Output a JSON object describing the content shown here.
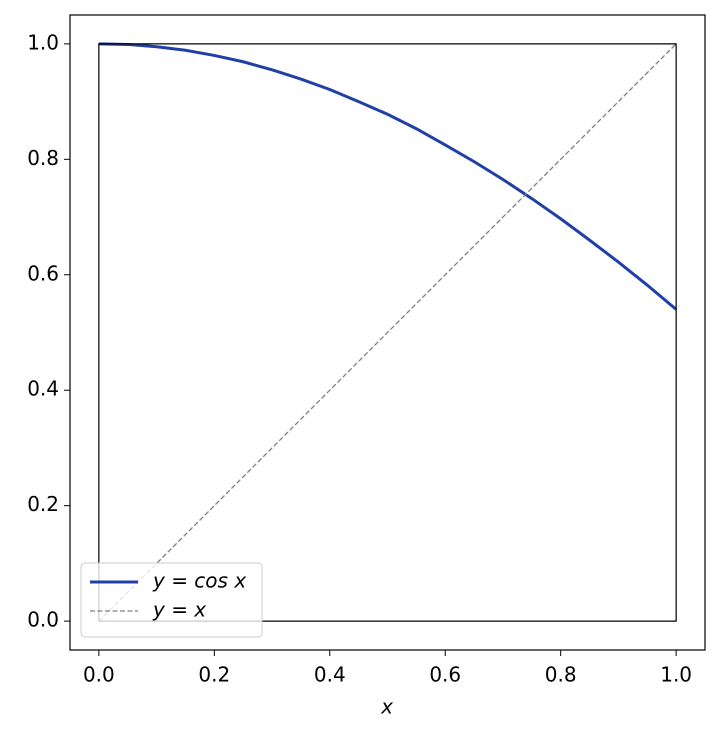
{
  "chart_data": {
    "type": "line",
    "xlabel": "x",
    "xlim": [
      -0.05,
      1.05
    ],
    "ylim": [
      -0.05,
      1.05
    ],
    "xticks": [
      {
        "value": 0,
        "label": "0.0"
      },
      0.2,
      0.4,
      0.6,
      0.8,
      {
        "value": 1,
        "label": "1.0"
      }
    ],
    "yticks": [
      {
        "value": 0,
        "label": "0.0"
      },
      0.2,
      0.4,
      0.6,
      0.8,
      {
        "value": 1,
        "label": "1.0"
      }
    ],
    "legend": "lower left",
    "series": [
      {
        "name": "y = cos x",
        "color": "#2040a8",
        "style": "solid",
        "x": [
          0,
          0.05,
          0.1,
          0.15,
          0.2,
          0.25,
          0.3,
          0.35,
          0.4,
          0.45,
          0.5,
          0.55,
          0.6,
          0.65,
          0.7,
          0.75,
          0.8,
          0.85,
          0.9,
          0.95,
          1
        ],
        "values": [
          1,
          0.999,
          0.995,
          0.989,
          0.98,
          0.969,
          0.955,
          0.939,
          0.921,
          0.9,
          0.878,
          0.853,
          0.825,
          0.796,
          0.765,
          0.732,
          0.697,
          0.66,
          0.622,
          0.582,
          0.54
        ]
      },
      {
        "name": "y = x",
        "color": "#808080",
        "style": "dashed",
        "x": [
          0,
          1
        ],
        "values": [
          0,
          1
        ]
      },
      {
        "color": "#000000",
        "style": "solid",
        "x": [
          0,
          1,
          1,
          0,
          0
        ],
        "values": [
          0,
          0,
          1,
          1,
          0
        ]
      }
    ]
  }
}
